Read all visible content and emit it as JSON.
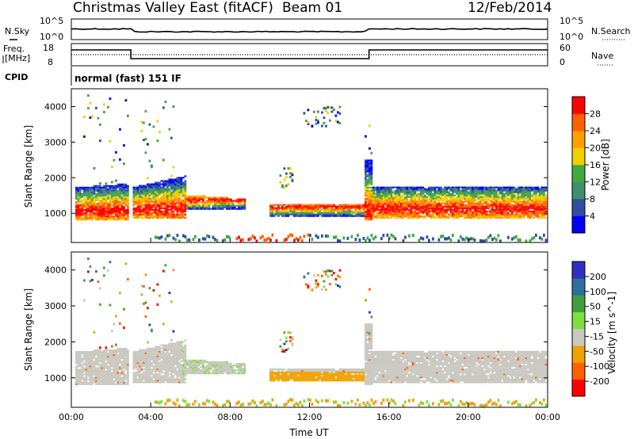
{
  "header": {
    "title": "Christmas Valley East (fitACF)",
    "beam": "Beam 01",
    "date": "12/Feb/2014"
  },
  "status_panel": {
    "nsky_label": "N.Sky",
    "nsky_ticks": [
      "10^5",
      "10^0"
    ],
    "nsearch_label": "N.Search",
    "nsearch_ticks": [
      "10^5",
      "10^0"
    ],
    "freq_label_1": "Freq.",
    "freq_label_2": "[MHz]",
    "freq_ticks": [
      "18",
      "8"
    ],
    "nave_label": "Nave",
    "nave_ticks": [
      "60",
      "0"
    ],
    "cpid_label": "CPID",
    "cpid_value": "normal (fast) 151 IF"
  },
  "colors": {
    "power_scale": [
      "#0000ff",
      "#2f4fa0",
      "#3f8f6f",
      "#3faa3f",
      "#f0d000",
      "#ffa000",
      "#ff6000",
      "#ff0000"
    ],
    "velocity_scale": [
      "#3030c0",
      "#2f6f9f",
      "#3f9f3f",
      "#7fdf3f",
      "#c8c8c0",
      "#f0a000",
      "#ff6000",
      "#ff0000"
    ],
    "ground_scatter": "#c8c8c0"
  },
  "chart_data": [
    {
      "type": "heatmap",
      "name": "power",
      "xlabel": "Time UT",
      "ylabel": "Slant Range [km]",
      "xlim": [
        0,
        24
      ],
      "ylim": [
        180,
        4500
      ],
      "x_ticks": [
        "00:00",
        "04:00",
        "08:00",
        "12:00",
        "16:00",
        "20:00",
        "00:00"
      ],
      "y_ticks": [
        "1000",
        "2000",
        "3000",
        "4000"
      ],
      "colorbar_label": "Power [dB]",
      "colorbar_ticks": [
        "4",
        "8",
        "12",
        "16",
        "20",
        "24",
        "28"
      ],
      "colorbar_range": [
        0,
        32
      ]
    },
    {
      "type": "heatmap",
      "name": "velocity",
      "xlabel": "Time UT",
      "ylabel": "Slant Range [km]",
      "xlim": [
        0,
        24
      ],
      "ylim": [
        180,
        4500
      ],
      "x_ticks": [
        "00:00",
        "04:00",
        "08:00",
        "12:00",
        "16:00",
        "20:00",
        "00:00"
      ],
      "y_ticks": [
        "1000",
        "2000",
        "3000",
        "4000"
      ],
      "colorbar_label": "Velocity [m s^-1]",
      "colorbar_ticks": [
        "200",
        "100",
        "50",
        "15",
        "-15",
        "-50",
        "-100",
        "-200"
      ],
      "colorbar_range": [
        -300,
        300
      ]
    }
  ]
}
